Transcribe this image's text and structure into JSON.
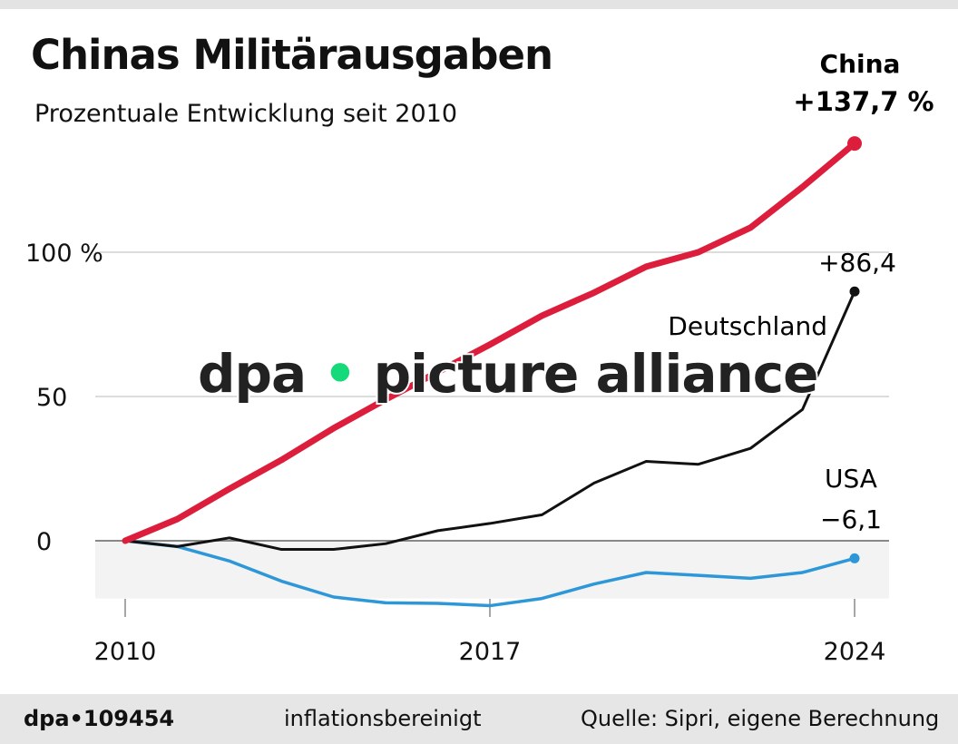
{
  "title": "Chinas Militärausgaben",
  "subtitle": "Prozentuale Entwicklung seit 2010",
  "footer": {
    "logo": "dpa•109454",
    "note": "inflationsbereinigt",
    "source": "Quelle: Sipri, eigene Berechnung"
  },
  "watermark": "dpa • picture alliance",
  "chart_data": {
    "type": "line",
    "x": [
      2010,
      2011,
      2012,
      2013,
      2014,
      2015,
      2016,
      2017,
      2018,
      2019,
      2020,
      2021,
      2022,
      2023,
      2024
    ],
    "xticks": [
      "2010",
      "2017",
      "2024"
    ],
    "yticks": [
      {
        "v": 0,
        "label": "0"
      },
      {
        "v": 50,
        "label": "50"
      },
      {
        "v": 100,
        "label": "100 %"
      }
    ],
    "ylim": [
      -20,
      140
    ],
    "grid": true,
    "series": [
      {
        "name": "China",
        "end_label": "+137,7 %",
        "color": "#dc1e3c",
        "values": [
          0,
          7.5,
          18,
          28,
          39,
          49,
          58.5,
          68,
          78,
          86,
          95,
          100,
          108.5,
          122.6,
          137.7
        ]
      },
      {
        "name": "Deutschland",
        "end_label": "+86,4",
        "color": "#111111",
        "values": [
          0,
          -2,
          1,
          -3,
          -3,
          -1,
          3.5,
          6,
          9,
          20,
          27.5,
          26.5,
          32,
          45.5,
          86.4
        ]
      },
      {
        "name": "USA",
        "end_label": "−6,1",
        "color": "#2e97d8",
        "values": [
          0,
          -2,
          -7,
          -14,
          -19.5,
          -21.5,
          -21.7,
          -22.5,
          -20,
          -15,
          -11,
          -12,
          -13,
          -11,
          -6.1
        ]
      }
    ]
  }
}
